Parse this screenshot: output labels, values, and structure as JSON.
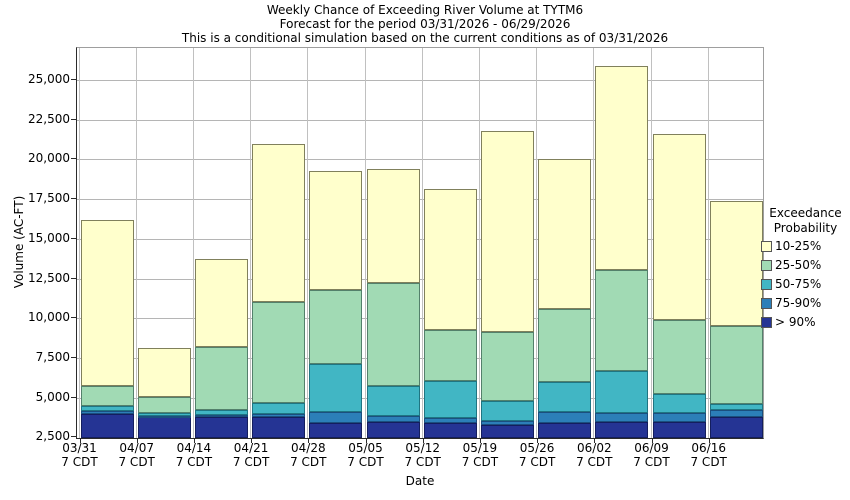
{
  "title": {
    "line1": "Weekly Chance of Exceeding River Volume at TYTM6",
    "line2": "Forecast for the period 03/31/2026 - 06/29/2026",
    "line3": "This is a conditional simulation based on the current conditions as of 03/31/2026"
  },
  "axes": {
    "y_label": "Volume (AC-FT)",
    "x_label": "Date",
    "y_tick_labels": [
      "2,500",
      "5,000",
      "7,500",
      "10,000",
      "12,500",
      "15,000",
      "17,500",
      "20,000",
      "22,500",
      "25,000"
    ],
    "y_tick_values": [
      2500,
      5000,
      7500,
      10000,
      12500,
      15000,
      17500,
      20000,
      22500,
      25000
    ],
    "x_tick_sublabel": "7 CDT"
  },
  "legend": {
    "title_line1": "Exceedance",
    "title_line2": "Probability",
    "entries": [
      {
        "label": "10-25%",
        "color": "#ffffcc"
      },
      {
        "label": "25-50%",
        "color": "#a1dab4"
      },
      {
        "label": "50-75%",
        "color": "#41b6c4"
      },
      {
        "label": "75-90%",
        "color": "#2c7fb8"
      },
      {
        "label": "> 90%",
        "color": "#253494"
      }
    ]
  },
  "chart_data": {
    "type": "bar",
    "subtype": "stacked-exceedance",
    "title": "Weekly Chance of Exceeding River Volume at TYTM6",
    "subtitle1": "Forecast for the period 03/31/2026 - 06/29/2026",
    "subtitle2": "This is a conditional simulation based on the current conditions as of 03/31/2026",
    "xlabel": "Date",
    "ylabel": "Volume (AC-FT)",
    "ylim": [
      2500,
      27000
    ],
    "grid": true,
    "legend_position": "right",
    "categories": [
      "03/31",
      "04/07",
      "04/14",
      "04/21",
      "04/28",
      "05/05",
      "05/12",
      "05/19",
      "05/26",
      "06/02",
      "06/09",
      "06/16"
    ],
    "category_sublabel": "7 CDT",
    "base_value": 2500,
    "series": [
      {
        "name": "> 90%",
        "color": "#253494",
        "border": "#141e5e",
        "tops": [
          3950,
          3750,
          3750,
          3800,
          3400,
          3450,
          3370,
          3250,
          3400,
          3450,
          3450,
          3750
        ]
      },
      {
        "name": "75-90%",
        "color": "#2c7fb8",
        "border": "#1b4f7e",
        "tops": [
          4150,
          3850,
          3900,
          3950,
          4100,
          3850,
          3700,
          3500,
          4100,
          4000,
          4000,
          4200
        ]
      },
      {
        "name": "50-75%",
        "color": "#41b6c4",
        "border": "#1f7582",
        "tops": [
          4500,
          4000,
          4250,
          4650,
          7100,
          5700,
          6050,
          4800,
          6000,
          6650,
          5200,
          4600
        ]
      },
      {
        "name": "25-50%",
        "color": "#a1dab4",
        "border": "#53806b",
        "tops": [
          5700,
          5050,
          8200,
          11000,
          11800,
          12200,
          9250,
          9100,
          10600,
          13050,
          9900,
          9500
        ]
      },
      {
        "name": "10-25%",
        "color": "#ffffcc",
        "border": "#80805c",
        "tops": [
          16200,
          8100,
          13750,
          21000,
          19300,
          19400,
          18150,
          21800,
          20000,
          25900,
          21600,
          17400
        ]
      }
    ]
  }
}
